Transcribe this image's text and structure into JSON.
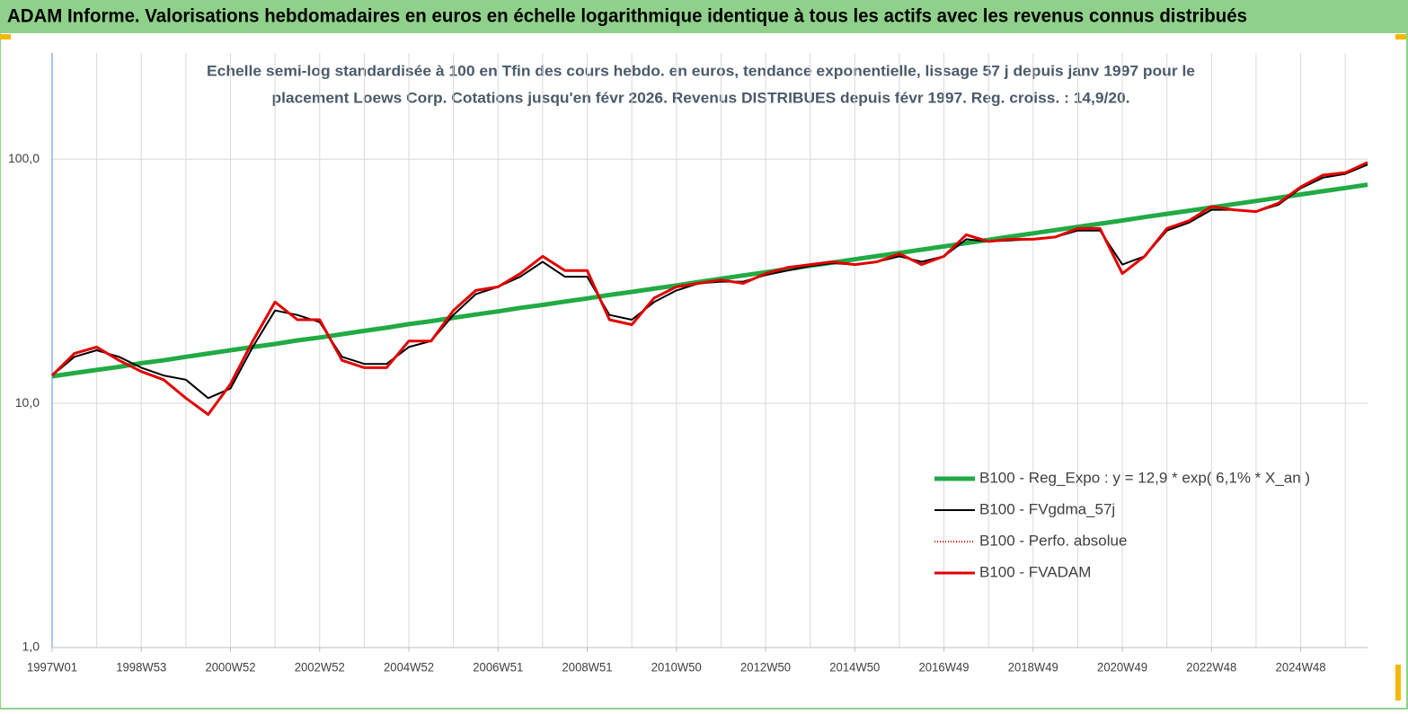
{
  "chart_data": {
    "type": "line",
    "title": "ADAM Informe. Valorisations hebdomadaires en euros en échelle logarithmique identique à tous les actifs avec les revenus connus distribués",
    "subtitle": [
      "Echelle semi-log standardisée à 100 en Tfin des cours hebdo. en euros, tendance exponentielle, lissage 57 j depuis janv 1997 pour le",
      "placement Loews Corp. Cotations jusqu'en févr 2026. Revenus DISTRIBUES depuis févr 1997. Reg. croiss. : 14,9/20."
    ],
    "categories": [
      "1997W01",
      null,
      null,
      null,
      "1998W53",
      null,
      null,
      null,
      "2000W52",
      null,
      null,
      null,
      "2002W52",
      null,
      null,
      null,
      "2004W52",
      null,
      null,
      null,
      "2006W51",
      null,
      null,
      null,
      "2008W51",
      null,
      null,
      null,
      "2010W50",
      null,
      null,
      null,
      "2012W50",
      null,
      null,
      null,
      "2014W50",
      null,
      null,
      null,
      "2016W49",
      null,
      null,
      null,
      "2018W49",
      null,
      null,
      null,
      "2020W49",
      null,
      null,
      null,
      "2022W48",
      null,
      null,
      null,
      "2024W48",
      null,
      null,
      null
    ],
    "log_scale": true,
    "ylim": [
      1,
      250
    ],
    "yticks": [
      {
        "value": 1,
        "label": "1,0"
      },
      {
        "value": 10,
        "label": "10,0"
      },
      {
        "value": 100,
        "label": "100,0"
      }
    ],
    "grid": true,
    "legend": "lower right",
    "series": [
      {
        "name": "B100 - Reg_Expo : y = 12,9 * exp( 6,1% *  X_an )",
        "color": "#22aa44",
        "style": "solid",
        "values": [
          12.9,
          13.3,
          13.7,
          14.1,
          14.6,
          15.0,
          15.5,
          16.0,
          16.5,
          17.0,
          17.5,
          18.1,
          18.6,
          19.2,
          19.8,
          20.4,
          21.1,
          21.7,
          22.4,
          23.1,
          23.8,
          24.6,
          25.3,
          26.1,
          26.9,
          27.8,
          28.6,
          29.5,
          30.4,
          31.4,
          32.4,
          33.4,
          34.4,
          35.5,
          36.6,
          37.7,
          38.9,
          40.1,
          41.3,
          42.6,
          43.9,
          45.3,
          46.7,
          48.2,
          49.7,
          51.2,
          52.8,
          54.4,
          56.1,
          57.9,
          59.7,
          61.5,
          63.4,
          65.4,
          67.4,
          69.5,
          71.7,
          73.9,
          76.2,
          78.6
        ]
      },
      {
        "name": "B100 - FVgdma_57j",
        "color": "#000000",
        "style": "solid",
        "values": [
          13,
          15.5,
          16.5,
          15.5,
          14,
          13,
          12.5,
          10.5,
          11.5,
          17,
          24,
          23,
          21.5,
          15.5,
          14.5,
          14.5,
          17,
          18,
          23,
          28,
          30,
          33,
          38,
          33,
          33,
          23,
          22,
          26,
          29,
          31,
          31.5,
          31.5,
          33.5,
          35,
          36.5,
          37.5,
          37,
          38,
          40,
          38,
          40,
          47,
          46,
          46.5,
          47,
          48,
          51,
          51,
          37,
          40,
          51,
          55,
          62,
          62,
          61,
          65,
          76,
          84,
          87,
          95
        ]
      },
      {
        "name": "B100 - Perfo. absolue",
        "color": "#e00000",
        "style": "dotted",
        "values": [
          13,
          16,
          17,
          15,
          13.5,
          12.5,
          10.5,
          9,
          12,
          18,
          26,
          22,
          22,
          15,
          14,
          14,
          18,
          18,
          24,
          29,
          30,
          34,
          40,
          35,
          35,
          22,
          21,
          27,
          30,
          31,
          32,
          31,
          34,
          36,
          37,
          38,
          37,
          38,
          41,
          37,
          40,
          49,
          46,
          47,
          47,
          48,
          52,
          52,
          34,
          40,
          52,
          56,
          64,
          62,
          61,
          66,
          77,
          86,
          88,
          97
        ]
      },
      {
        "name": "B100 - FVADAM",
        "color": "#e00000",
        "style": "solid",
        "values": [
          13,
          16,
          17,
          15,
          13.5,
          12.5,
          10.5,
          9,
          12,
          18,
          26,
          22,
          22,
          15,
          14,
          14,
          18,
          18,
          24,
          29,
          30,
          34,
          40,
          35,
          35,
          22,
          21,
          27,
          30,
          31,
          32,
          31,
          34,
          36,
          37,
          38,
          37,
          38,
          41,
          37,
          40,
          49,
          46,
          47,
          47,
          48,
          52,
          52,
          34,
          40,
          52,
          56,
          64,
          62,
          61,
          66,
          77,
          86,
          88,
          97
        ]
      }
    ]
  }
}
